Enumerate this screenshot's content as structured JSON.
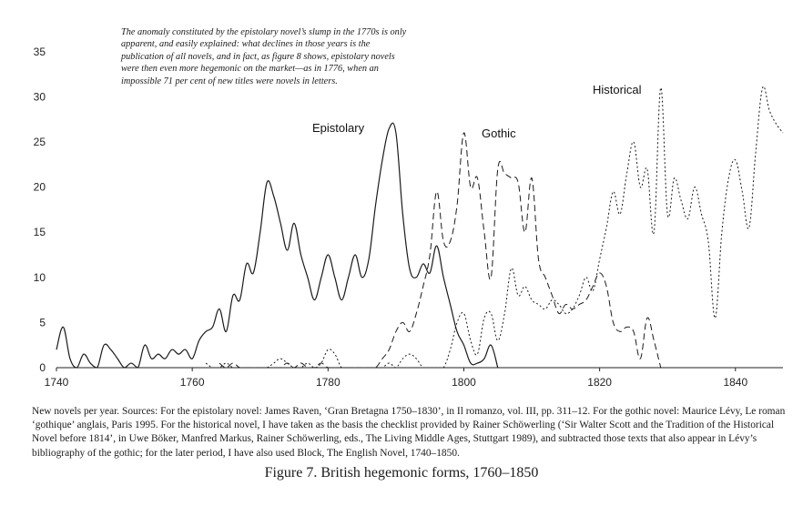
{
  "annotation": "The anomaly constituted by the epistolary novel’s slump in the 1770s is only apparent, and easily explained: what declines in those years is the publication of all novels, and in fact, as figure 8 shows, epistolary novels were then even more hegemonic on the market—as in 1776, when an impossible 71 per cent of new titles were novels in letters.",
  "caption": "New novels per year. Sources: For the epistolary novel: James Raven, ‘Gran Bretagna 1750–1830’, in Il romanzo, vol. III, pp. 311–12. For the gothic novel: Maurice Lévy, Le roman ‘gothique’ anglais, Paris 1995. For the historical novel, I have taken as the basis the checklist provided by Rainer Schöwerling (‘Sir Walter Scott and the Tradition of the Historical Novel before 1814’, in Uwe Böker, Manfred Markus, Rainer Schöwerling, eds., The Living Middle Ages, Stuttgart 1989), and subtracted those texts that also appear in Lévy’s bibliography of the gothic; for the later period, I have also used Block, The English Novel, 1740–1850.",
  "figure_title": "Figure 7.   British hegemonic forms, 1760–1850",
  "chart_data": {
    "type": "line",
    "xlim": [
      1740,
      1847
    ],
    "ylim": [
      0,
      38
    ],
    "xticks": [
      1740,
      1760,
      1780,
      1800,
      1820,
      1840
    ],
    "yticks": [
      0,
      5,
      10,
      15,
      20,
      25,
      30,
      35
    ],
    "grid": false,
    "legend": "inline labels",
    "series": [
      {
        "name": "Epistolary",
        "style": "solid",
        "x": [
          1740,
          1741,
          1742,
          1743,
          1744,
          1745,
          1746,
          1747,
          1748,
          1749,
          1750,
          1751,
          1752,
          1753,
          1754,
          1755,
          1756,
          1757,
          1758,
          1759,
          1760,
          1761,
          1762,
          1763,
          1764,
          1765,
          1766,
          1767,
          1768,
          1769,
          1770,
          1771,
          1772,
          1773,
          1774,
          1775,
          1776,
          1777,
          1778,
          1779,
          1780,
          1781,
          1782,
          1783,
          1784,
          1785,
          1786,
          1787,
          1788,
          1789,
          1790,
          1791,
          1792,
          1793,
          1794,
          1795,
          1796,
          1797,
          1798,
          1799,
          1800,
          1801,
          1802,
          1803,
          1804,
          1805
        ],
        "y": [
          2,
          4.5,
          1,
          0,
          1.5,
          0.5,
          0,
          2.5,
          2,
          1,
          0,
          0.5,
          0,
          2.5,
          1,
          1.5,
          1,
          2,
          1.5,
          2,
          1,
          3,
          4,
          4.5,
          6.5,
          4,
          8,
          7.5,
          11.5,
          10.5,
          15,
          20.5,
          19,
          16,
          13,
          16,
          12.5,
          10,
          7.5,
          10,
          12.5,
          10,
          7.5,
          10,
          12.5,
          10,
          12,
          18,
          23,
          26.5,
          26,
          17,
          11,
          10,
          11.5,
          10.5,
          13.5,
          10,
          7,
          4,
          2.5,
          0.5,
          0.5,
          1,
          2.5,
          0
        ]
      },
      {
        "name": "Gothic",
        "style": "dashed",
        "x": [
          1764,
          1765,
          1766,
          1767,
          1768,
          1769,
          1770,
          1771,
          1772,
          1773,
          1774,
          1775,
          1776,
          1777,
          1778,
          1779,
          1780,
          1781,
          1782,
          1783,
          1784,
          1785,
          1786,
          1787,
          1788,
          1789,
          1790,
          1791,
          1792,
          1793,
          1794,
          1795,
          1796,
          1797,
          1798,
          1799,
          1800,
          1801,
          1802,
          1803,
          1804,
          1805,
          1806,
          1807,
          1808,
          1809,
          1810,
          1811,
          1812,
          1813,
          1814,
          1815,
          1816,
          1817,
          1818,
          1819,
          1820,
          1821,
          1822,
          1823,
          1824,
          1825,
          1826,
          1827,
          1828,
          1829
        ],
        "y": [
          0.5,
          0,
          0.5,
          0,
          0,
          0,
          0,
          0,
          0,
          0,
          0.5,
          0,
          0.5,
          0,
          0,
          0.5,
          0,
          0,
          0,
          0,
          0,
          0,
          0,
          0,
          1,
          2,
          4,
          5,
          4,
          6,
          9,
          12.5,
          19.5,
          14,
          14,
          18,
          26,
          20,
          21,
          15,
          10,
          22,
          21.5,
          21,
          20.5,
          15,
          21,
          12,
          10,
          8,
          6,
          7,
          6.5,
          7,
          7.5,
          9,
          10.5,
          9,
          5,
          4,
          4.5,
          4,
          1,
          5.5,
          3,
          0
        ]
      },
      {
        "name": "Historical",
        "style": "dotted",
        "x": [
          1762,
          1763,
          1764,
          1765,
          1766,
          1767,
          1768,
          1769,
          1770,
          1771,
          1772,
          1773,
          1774,
          1775,
          1776,
          1777,
          1778,
          1779,
          1780,
          1781,
          1782,
          1783,
          1784,
          1785,
          1786,
          1787,
          1788,
          1789,
          1790,
          1791,
          1792,
          1793,
          1794,
          1795,
          1796,
          1797,
          1798,
          1799,
          1800,
          1801,
          1802,
          1803,
          1804,
          1805,
          1806,
          1807,
          1808,
          1809,
          1810,
          1811,
          1812,
          1813,
          1814,
          1815,
          1816,
          1817,
          1818,
          1819,
          1820,
          1821,
          1822,
          1823,
          1824,
          1825,
          1826,
          1827,
          1828,
          1829,
          1830,
          1831,
          1832,
          1833,
          1834,
          1835,
          1836,
          1837,
          1838,
          1839,
          1840,
          1841,
          1842,
          1843,
          1844,
          1845,
          1846,
          1847
        ],
        "y": [
          0.5,
          0,
          0,
          0.5,
          0,
          0,
          0,
          0,
          0,
          0,
          0.5,
          1,
          0.5,
          0,
          0,
          0.5,
          0,
          0.5,
          2,
          1.5,
          0,
          0,
          0,
          0,
          0,
          0,
          0,
          0.5,
          0,
          1,
          1.5,
          1,
          0,
          0,
          0,
          0,
          2,
          5,
          6,
          3,
          1.5,
          5.5,
          6,
          3,
          6,
          11,
          8,
          9,
          7.5,
          7,
          6.5,
          7.5,
          7,
          6,
          6.5,
          8,
          10,
          8.5,
          12,
          15.5,
          19.5,
          17,
          21.5,
          25,
          20,
          22,
          15,
          31,
          17,
          21,
          18.5,
          16.5,
          20,
          17,
          14,
          5.5,
          15,
          21,
          23,
          19.5,
          15.5,
          24,
          31,
          28.5,
          27,
          26
        ]
      }
    ]
  },
  "labels": {
    "epistolary": "Epistolary",
    "gothic": "Gothic",
    "historical": "Historical"
  }
}
